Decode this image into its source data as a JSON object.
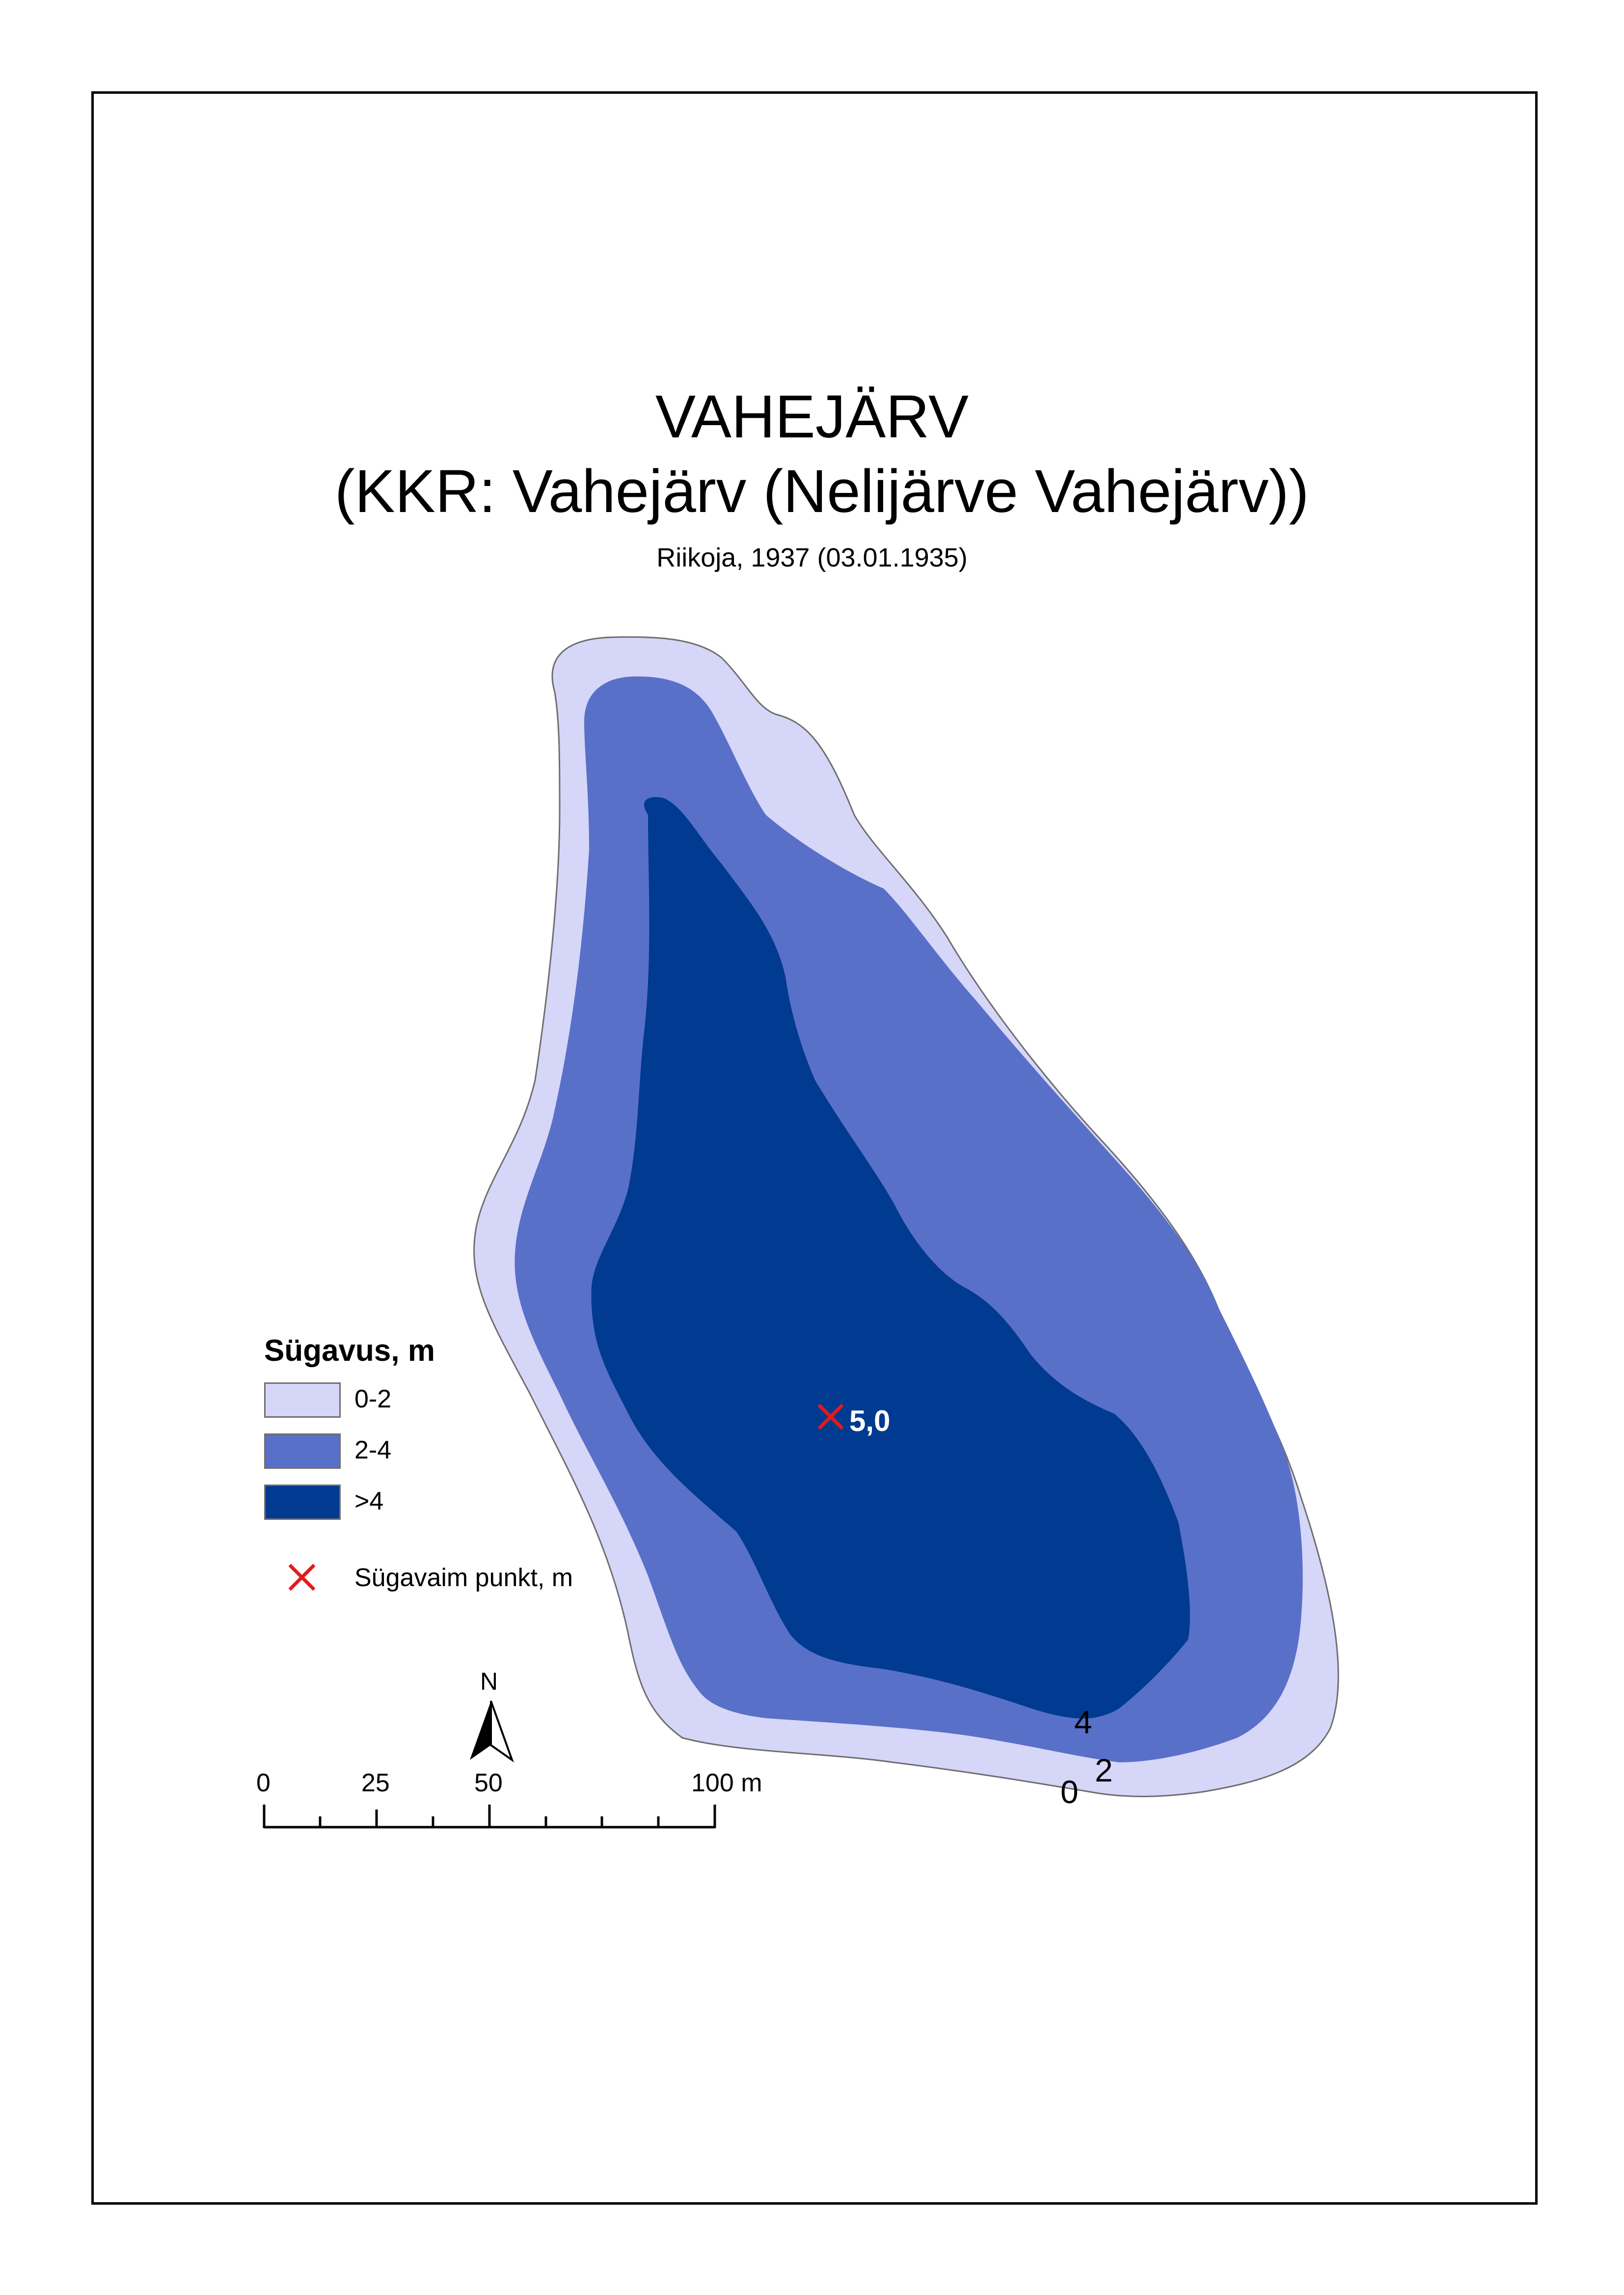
{
  "title": "VAHEJÄRV",
  "subtitle_kkr": "(KKR: Vahejärv (Nelijärve Vahejärv))",
  "source": "Riikoja, 1937 (03.01.1935)",
  "legend": {
    "title": "Sügavus, m",
    "classes": [
      {
        "label": "0-2",
        "color": "#d6d6f9"
      },
      {
        "label": "2-4",
        "color": "#5970c8"
      },
      {
        "label": ">4",
        "color": "#003a91"
      }
    ],
    "deepest_point_label": "Sügavaim punkt, m",
    "deepest_point_color": "#e31a1c"
  },
  "deepest_point": {
    "value": "5,0"
  },
  "contour_labels": {
    "c4": "4",
    "c2": "2",
    "c0": "0"
  },
  "north_arrow": {
    "label": "N",
    "icon": "north-arrow-icon"
  },
  "scale_bar": {
    "ticks": [
      "0",
      "25",
      "50",
      "100 m"
    ]
  },
  "colors": {
    "outline": "#6e6e6e",
    "frame": "#000000"
  }
}
